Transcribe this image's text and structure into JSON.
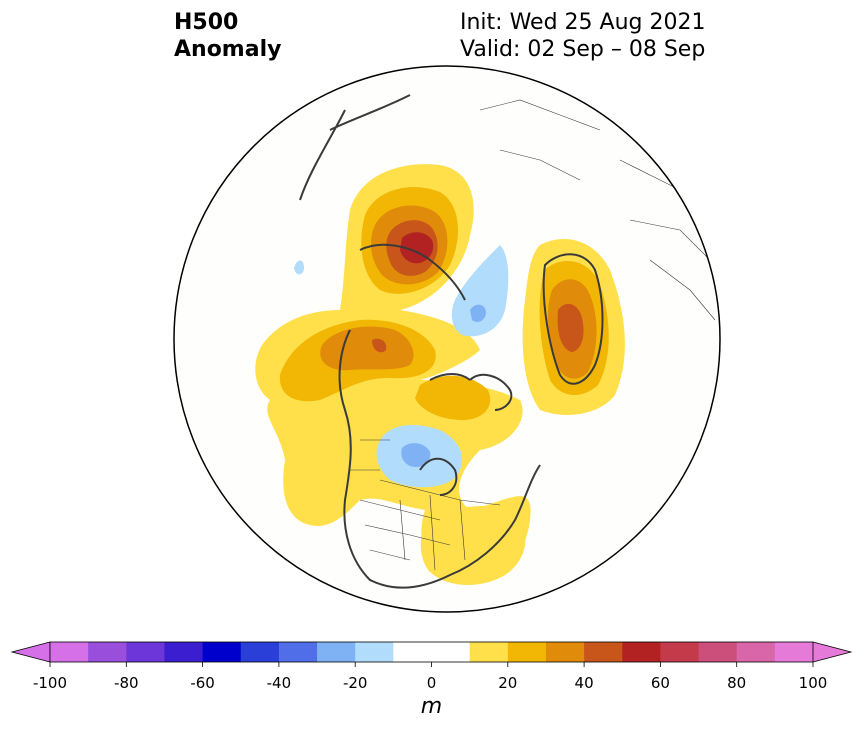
{
  "header": {
    "title_line1": "H500",
    "title_line2": "Anomaly",
    "init_text": "Init: Wed 25 Aug 2021",
    "valid_text": "Valid: 02 Sep – 08 Sep"
  },
  "colorbar": {
    "unit": "m",
    "levels": [
      -100,
      -90,
      -80,
      -70,
      -60,
      -50,
      -40,
      -30,
      -20,
      -10,
      10,
      20,
      30,
      40,
      50,
      60,
      70,
      80,
      90,
      100
    ],
    "ticks": [
      -100,
      -80,
      -60,
      -40,
      -20,
      0,
      20,
      40,
      60,
      80,
      100
    ],
    "tick_labels": [
      "-100",
      "-80",
      "-60",
      "-40",
      "-20",
      "0",
      "20",
      "40",
      "60",
      "80",
      "100"
    ],
    "colors": [
      "#d670e8",
      "#9a4fdc",
      "#6c36d8",
      "#3a1ed0",
      "#0000cc",
      "#2a3ed8",
      "#4f6ee8",
      "#7eb2f4",
      "#b1dcfc",
      "#ffffff",
      "#ffe04a",
      "#f2b705",
      "#e08b0a",
      "#c8561a",
      "#b22222",
      "#c43a4a",
      "#cc4e7a",
      "#d866a8",
      "#e67ad8"
    ],
    "extend_low_color": "#d670e8",
    "extend_high_color": "#e67ad8"
  },
  "map": {
    "projection": "north-polar-stereographic",
    "background": "#fefefc",
    "coastline_color": "#3a3a3a"
  }
}
